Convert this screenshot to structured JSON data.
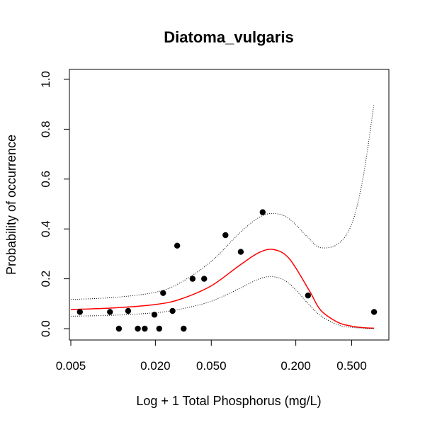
{
  "chart_data": {
    "type": "scatter",
    "title": "Diatoma_vulgaris",
    "xlabel": "Log + 1 Total Phosphorus (mg/L)",
    "ylabel": "Probability of occurrence",
    "x_scale": "log",
    "xlim": [
      0.005,
      0.8
    ],
    "ylim": [
      0,
      1
    ],
    "x_ticks": [
      {
        "value": 0.005,
        "label": "0.005"
      },
      {
        "value": 0.02,
        "label": "0.020"
      },
      {
        "value": 0.05,
        "label": "0.050"
      },
      {
        "value": 0.2,
        "label": "0.200"
      },
      {
        "value": 0.5,
        "label": "0.500"
      }
    ],
    "y_ticks": [
      {
        "value": 0.0,
        "label": "0.0"
      },
      {
        "value": 0.2,
        "label": "0.2"
      },
      {
        "value": 0.4,
        "label": "0.4"
      },
      {
        "value": 0.6,
        "label": "0.6"
      },
      {
        "value": 0.8,
        "label": "0.8"
      },
      {
        "value": 1.0,
        "label": "1.0"
      }
    ],
    "grid": false,
    "colors": {
      "points": "#000000",
      "fit": "#ff0000",
      "ci": "#000000"
    },
    "points": [
      {
        "x": 0.0058,
        "y": 0.067
      },
      {
        "x": 0.0095,
        "y": 0.067
      },
      {
        "x": 0.011,
        "y": 0.0
      },
      {
        "x": 0.0128,
        "y": 0.071
      },
      {
        "x": 0.015,
        "y": 0.0
      },
      {
        "x": 0.0168,
        "y": 0.0
      },
      {
        "x": 0.0197,
        "y": 0.056
      },
      {
        "x": 0.0213,
        "y": 0.0
      },
      {
        "x": 0.0227,
        "y": 0.143
      },
      {
        "x": 0.0265,
        "y": 0.071
      },
      {
        "x": 0.0286,
        "y": 0.333
      },
      {
        "x": 0.0318,
        "y": 0.0
      },
      {
        "x": 0.0368,
        "y": 0.2
      },
      {
        "x": 0.0445,
        "y": 0.2
      },
      {
        "x": 0.0631,
        "y": 0.375
      },
      {
        "x": 0.0811,
        "y": 0.308
      },
      {
        "x": 0.1161,
        "y": 0.467
      },
      {
        "x": 0.2443,
        "y": 0.133
      },
      {
        "x": 0.7215,
        "y": 0.067
      }
    ],
    "series": [
      {
        "style": "solid",
        "x": [
          0.005,
          0.01,
          0.02,
          0.03,
          0.05,
          0.08,
          0.11,
          0.14,
          0.18,
          0.25,
          0.3,
          0.4,
          0.5,
          0.6,
          0.72
        ],
        "y": [
          0.077,
          0.083,
          0.097,
          0.118,
          0.172,
          0.255,
          0.306,
          0.317,
          0.28,
          0.152,
          0.075,
          0.025,
          0.01,
          0.004,
          0.002
        ]
      },
      {
        "style": "dotted",
        "x": [
          0.005,
          0.01,
          0.02,
          0.03,
          0.05,
          0.08,
          0.11,
          0.14,
          0.18,
          0.25,
          0.3,
          0.4,
          0.5,
          0.6,
          0.72
        ],
        "y": [
          0.117,
          0.125,
          0.146,
          0.184,
          0.27,
          0.385,
          0.447,
          0.462,
          0.44,
          0.36,
          0.325,
          0.34,
          0.42,
          0.6,
          0.9
        ]
      },
      {
        "style": "dotted",
        "x": [
          0.005,
          0.01,
          0.02,
          0.03,
          0.05,
          0.08,
          0.11,
          0.14,
          0.18,
          0.25,
          0.3,
          0.4,
          0.5,
          0.6,
          0.72
        ],
        "y": [
          0.05,
          0.054,
          0.064,
          0.078,
          0.11,
          0.162,
          0.2,
          0.208,
          0.18,
          0.095,
          0.052,
          0.015,
          0.005,
          0.002,
          0.0
        ]
      }
    ]
  }
}
